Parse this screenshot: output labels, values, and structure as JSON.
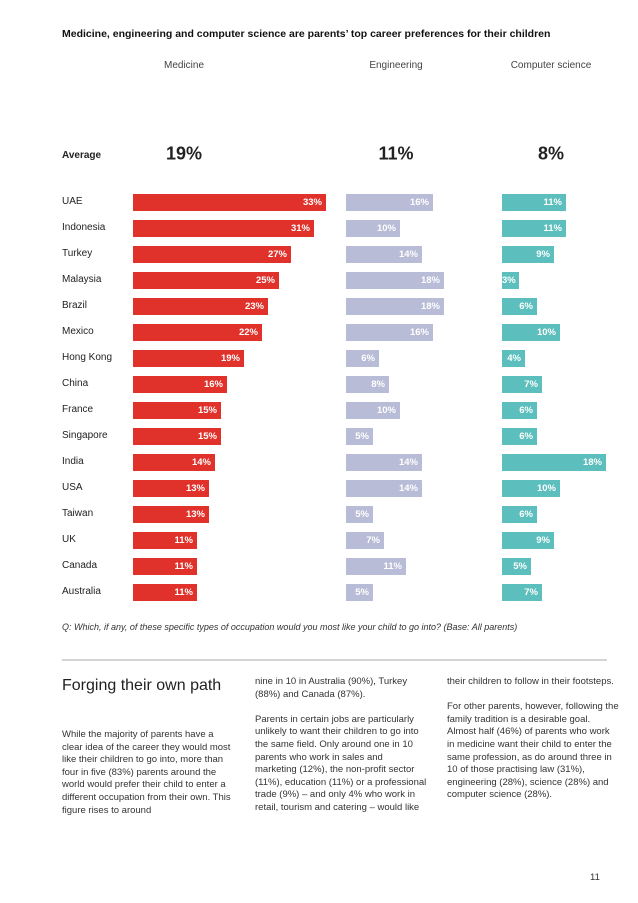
{
  "title": "Medicine, engineering and computer science are parents’ top career preferences for their children",
  "average_label": "Average",
  "question": "Q: Which, if any, of these specific types of occupation would you most like your child to go into? (Base: All parents)",
  "colors": {
    "medicine": "#e0312b",
    "engineering": "#b8bcd6",
    "computer_science": "#5cbfbd",
    "ring_bg": "#e4e4e4"
  },
  "chart_data": {
    "type": "bar",
    "orientation": "horizontal",
    "title": "Medicine, engineering and computer science are parents’ top career preferences for their children",
    "categories": [
      "UAE",
      "Indonesia",
      "Turkey",
      "Malaysia",
      "Brazil",
      "Mexico",
      "Hong Kong",
      "China",
      "France",
      "Singapore",
      "India",
      "USA",
      "Taiwan",
      "UK",
      "Canada",
      "Australia"
    ],
    "series": [
      {
        "name": "Medicine",
        "key": "medicine",
        "icon": "stethoscope-icon",
        "average": 19,
        "values": [
          33,
          31,
          27,
          25,
          23,
          22,
          19,
          16,
          15,
          15,
          14,
          13,
          13,
          11,
          11,
          11
        ]
      },
      {
        "name": "Engineering",
        "key": "engineering",
        "icon": "drafting-compass-icon",
        "average": 11,
        "values": [
          16,
          10,
          14,
          18,
          18,
          16,
          6,
          8,
          10,
          5,
          14,
          14,
          5,
          7,
          11,
          5
        ]
      },
      {
        "name": "Computer science",
        "key": "computer_science",
        "icon": "computer-devices-icon",
        "average": 8,
        "values": [
          11,
          11,
          9,
          3,
          6,
          10,
          4,
          7,
          6,
          6,
          18,
          10,
          6,
          9,
          5,
          7
        ]
      }
    ],
    "unit": "%"
  },
  "text": {
    "heading": "Forging their own path",
    "col1": [
      "While the majority of parents have a clear idea of the career they would most like their children to go into, more than four in five (83%) parents around the world would prefer their child to enter a different occupation from their own. This figure rises to around"
    ],
    "col2": [
      "nine in 10 in Australia (90%), Turkey (88%) and Canada (87%).",
      "Parents in certain jobs are particularly unlikely to want their children to go into the same field. Only around one in 10 parents who work in sales and marketing (12%), the non-profit sector (11%), education (11%) or a professional trade (9%) – and only 4% who work in retail, tourism and catering – would like"
    ],
    "col3": [
      "their children to follow in their footsteps.",
      "For other parents, however, following the family tradition is a desirable goal. Almost half (46%) of parents who work in medicine want their child to enter the same profession, as do around three in 10 of those practising law (31%), engineering (28%), science (28%) and computer science (28%)."
    ]
  },
  "page_number": "11"
}
